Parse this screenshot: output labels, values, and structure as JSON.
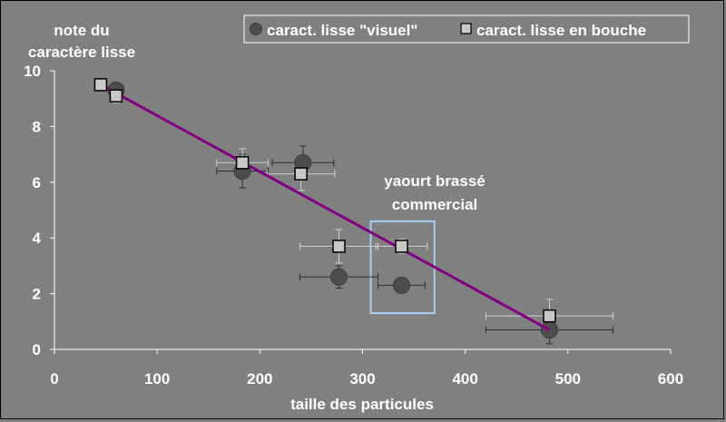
{
  "chart_data": {
    "type": "scatter",
    "ylabel_lines": [
      "note du",
      "caractère lisse"
    ],
    "xlabel": "taille des particules",
    "xlim": [
      0,
      600
    ],
    "ylim": [
      0,
      10
    ],
    "x_ticks": [
      0,
      100,
      200,
      300,
      400,
      500,
      600
    ],
    "y_ticks": [
      0,
      2,
      4,
      6,
      8,
      10
    ],
    "grid": false,
    "legend_position": "top-right",
    "series": [
      {
        "name": "caract. lisse \"visuel\"",
        "marker": "circle",
        "color": "#4d4d4d",
        "points": [
          {
            "x": 60,
            "y": 9.3,
            "xerr": 0,
            "yerr": 0.15
          },
          {
            "x": 183,
            "y": 6.4,
            "xerr": 25,
            "yerr": 0.6
          },
          {
            "x": 242,
            "y": 6.7,
            "xerr": 30,
            "yerr": 0.6
          },
          {
            "x": 277,
            "y": 2.6,
            "xerr": 38,
            "yerr": 0.4
          },
          {
            "x": 338,
            "y": 2.3,
            "xerr": 23,
            "yerr": 0.25
          },
          {
            "x": 482,
            "y": 0.7,
            "xerr": 62,
            "yerr": 0.5
          }
        ]
      },
      {
        "name": "caract. lisse en bouche",
        "marker": "square",
        "color": "#c8c8c8",
        "points": [
          {
            "x": 45,
            "y": 9.5,
            "xerr": 0,
            "yerr": 0.1
          },
          {
            "x": 60,
            "y": 9.1,
            "xerr": 0,
            "yerr": 0.25
          },
          {
            "x": 183,
            "y": 6.7,
            "xerr": 25,
            "yerr": 0.5
          },
          {
            "x": 240,
            "y": 6.3,
            "xerr": 33,
            "yerr": 0.6
          },
          {
            "x": 277,
            "y": 3.7,
            "xerr": 38,
            "yerr": 0.6
          },
          {
            "x": 338,
            "y": 3.7,
            "xerr": 25,
            "yerr": 0.25
          },
          {
            "x": 482,
            "y": 1.2,
            "xerr": 62,
            "yerr": 0.6
          }
        ]
      }
    ],
    "trendline": {
      "color": "#800080",
      "from": [
        45,
        9.5
      ],
      "to": [
        482,
        0.7
      ]
    },
    "annotation": {
      "lines": [
        "yaourt brassé",
        "commercial"
      ],
      "box": {
        "x0": 308,
        "x1": 370,
        "y0": 1.3,
        "y1": 4.6
      },
      "color": "#a8cff0"
    }
  }
}
